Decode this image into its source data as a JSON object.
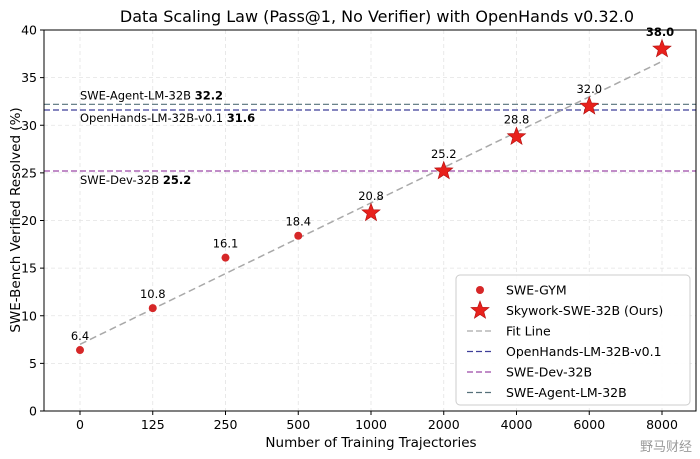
{
  "chart_data": {
    "type": "scatter",
    "title": "Data Scaling Law (Pass@1, No Verifier) with OpenHands v0.32.0",
    "xlabel": "Number of Training Trajectories",
    "ylabel": "SWE-Bench Verified Resolved (%)",
    "ylim": [
      0,
      40
    ],
    "yticks": [
      0,
      5,
      10,
      15,
      20,
      25,
      30,
      35,
      40
    ],
    "categories": [
      "0",
      "125",
      "250",
      "500",
      "1000",
      "2000",
      "4000",
      "6000",
      "8000"
    ],
    "grid": true,
    "legend_position": "lower-right",
    "series": [
      {
        "name": "SWE-GYM",
        "marker": "circle",
        "color": "#d62728",
        "points": [
          {
            "x": "0",
            "y": 6.4,
            "label": "6.4"
          },
          {
            "x": "125",
            "y": 10.8,
            "label": "10.8"
          },
          {
            "x": "250",
            "y": 16.1,
            "label": "16.1"
          },
          {
            "x": "500",
            "y": 18.4,
            "label": "18.4"
          }
        ]
      },
      {
        "name": "Skywork-SWE-32B (Ours)",
        "marker": "star",
        "color": "#e8211c",
        "points": [
          {
            "x": "1000",
            "y": 20.8,
            "label": "20.8"
          },
          {
            "x": "2000",
            "y": 25.2,
            "label": "25.2"
          },
          {
            "x": "4000",
            "y": 28.8,
            "label": "28.8"
          },
          {
            "x": "6000",
            "y": 32.0,
            "label": "32.0"
          },
          {
            "x": "8000",
            "y": 38.0,
            "label": "38.0"
          }
        ]
      }
    ],
    "fit_line": {
      "name": "Fit Line",
      "color": "#a9a9a9",
      "style": "dashed",
      "from": {
        "x": "0",
        "y": 7.0
      },
      "to": {
        "x": "8000",
        "y": 36.7
      }
    },
    "reference_lines": [
      {
        "name": "OpenHands-LM-32B-v0.1",
        "value": 31.6,
        "value_label": "31.6",
        "color": "#3f3f99"
      },
      {
        "name": "SWE-Dev-32B",
        "value": 25.2,
        "value_label": "25.2",
        "color": "#9c49a6"
      },
      {
        "name": "SWE-Agent-LM-32B",
        "value": 32.2,
        "value_label": "32.2",
        "color": "#56707a"
      }
    ]
  },
  "watermark": "野马财经"
}
